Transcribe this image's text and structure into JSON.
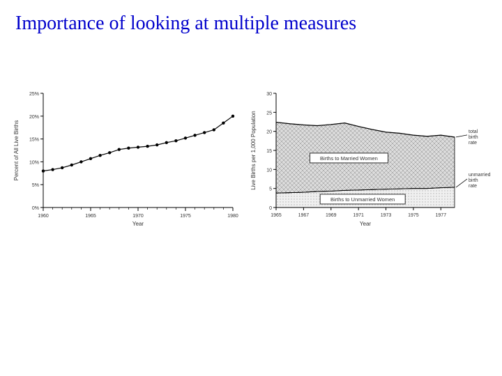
{
  "title": "Importance of looking at multiple measures",
  "left_chart": {
    "type": "line",
    "xlabel": "Year",
    "ylabel": "Percent of All Live Births",
    "label_fontsize": 8,
    "tick_fontsize": 7,
    "xlim": [
      1960,
      1980
    ],
    "xtick_step": 5,
    "x_minor_step": 1,
    "ylim": [
      0,
      25
    ],
    "ytick_step": 5,
    "y_suffix": "%",
    "background_color": "#ffffff",
    "line_color": "#000000",
    "marker_color": "#000000",
    "marker_size": 2.2,
    "x": [
      1960,
      1961,
      1962,
      1963,
      1964,
      1965,
      1966,
      1967,
      1968,
      1969,
      1970,
      1971,
      1972,
      1973,
      1974,
      1975,
      1976,
      1977,
      1978,
      1979,
      1980
    ],
    "y": [
      8.0,
      8.3,
      8.7,
      9.3,
      10.0,
      10.7,
      11.4,
      12.0,
      12.7,
      13.0,
      13.2,
      13.4,
      13.7,
      14.2,
      14.6,
      15.2,
      15.8,
      16.4,
      17.0,
      18.5,
      20.0
    ]
  },
  "right_chart": {
    "type": "area",
    "xlabel": "Year",
    "ylabel": "Live Births per 1,000 Population",
    "label_fontsize": 8,
    "tick_fontsize": 7,
    "xlim": [
      1965,
      1978
    ],
    "x_ticks": [
      1965,
      1967,
      1969,
      1971,
      1973,
      1975,
      1977
    ],
    "ylim": [
      0,
      30
    ],
    "ytick_step": 5,
    "background_color": "#ffffff",
    "pattern_married_fill": "#dcdcdc",
    "pattern_unmarried_fill": "#f0f0f0",
    "border_color": "#000000",
    "label_married": "Births to Married Women",
    "label_unmarried": "Births to Unmarried Women",
    "right_label_total": "total birth rate",
    "right_label_unmarried": "unmarried birth rate",
    "years": [
      1965,
      1966,
      1967,
      1968,
      1969,
      1970,
      1971,
      1972,
      1973,
      1974,
      1975,
      1976,
      1977,
      1978
    ],
    "total": [
      22.4,
      22.0,
      21.7,
      21.5,
      21.8,
      22.2,
      21.3,
      20.5,
      19.8,
      19.5,
      19.0,
      18.7,
      19.0,
      18.5
    ],
    "unmarried": [
      3.8,
      3.9,
      4.0,
      4.2,
      4.3,
      4.5,
      4.6,
      4.7,
      4.8,
      4.9,
      5.0,
      5.0,
      5.2,
      5.3
    ]
  }
}
